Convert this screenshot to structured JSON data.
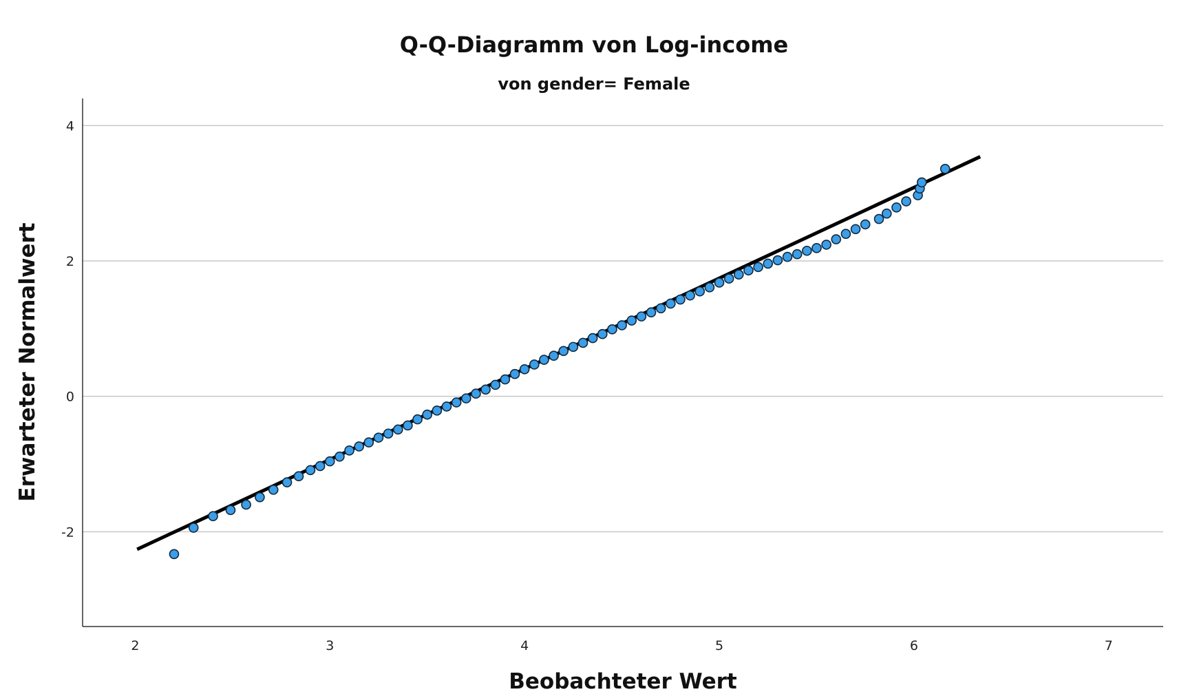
{
  "chart_data": {
    "type": "scatter",
    "title": "Q-Q-Diagramm von Log-income",
    "subtitle": "von gender= Female",
    "xlabel": "Beobachteter Wert",
    "ylabel": "Erwarteter Normalwert",
    "xlim": [
      1.73,
      7.28
    ],
    "ylim": [
      -3.4,
      4.4
    ],
    "x_ticks": [
      "2",
      "3",
      "4",
      "5",
      "6",
      "7"
    ],
    "y_ticks": [
      "-2",
      "0",
      "2",
      "4"
    ],
    "grid": "horizontal",
    "point_color": "#3d9ee8",
    "line_color": "#000000",
    "reference_line": {
      "x": [
        2.01,
        6.34
      ],
      "y": [
        -2.26,
        3.54
      ]
    },
    "series": [
      {
        "points": [
          [
            2.2,
            -2.33
          ],
          [
            2.3,
            -1.94
          ],
          [
            2.4,
            -1.77
          ],
          [
            2.49,
            -1.68
          ],
          [
            2.57,
            -1.6
          ],
          [
            2.64,
            -1.49
          ],
          [
            2.71,
            -1.38
          ],
          [
            2.78,
            -1.27
          ],
          [
            2.84,
            -1.18
          ],
          [
            2.9,
            -1.09
          ],
          [
            2.95,
            -1.03
          ],
          [
            3.0,
            -0.96
          ],
          [
            3.05,
            -0.89
          ],
          [
            3.1,
            -0.8
          ],
          [
            3.15,
            -0.74
          ],
          [
            3.2,
            -0.68
          ],
          [
            3.25,
            -0.61
          ],
          [
            3.3,
            -0.55
          ],
          [
            3.35,
            -0.49
          ],
          [
            3.4,
            -0.43
          ],
          [
            3.45,
            -0.34
          ],
          [
            3.5,
            -0.27
          ],
          [
            3.55,
            -0.21
          ],
          [
            3.6,
            -0.15
          ],
          [
            3.65,
            -0.09
          ],
          [
            3.7,
            -0.03
          ],
          [
            3.75,
            0.04
          ],
          [
            3.8,
            0.1
          ],
          [
            3.85,
            0.17
          ],
          [
            3.9,
            0.25
          ],
          [
            3.95,
            0.33
          ],
          [
            4.0,
            0.4
          ],
          [
            4.05,
            0.47
          ],
          [
            4.1,
            0.54
          ],
          [
            4.15,
            0.6
          ],
          [
            4.2,
            0.67
          ],
          [
            4.25,
            0.73
          ],
          [
            4.3,
            0.79
          ],
          [
            4.35,
            0.86
          ],
          [
            4.4,
            0.92
          ],
          [
            4.45,
            0.99
          ],
          [
            4.5,
            1.05
          ],
          [
            4.55,
            1.12
          ],
          [
            4.6,
            1.18
          ],
          [
            4.65,
            1.24
          ],
          [
            4.7,
            1.3
          ],
          [
            4.75,
            1.37
          ],
          [
            4.8,
            1.43
          ],
          [
            4.85,
            1.49
          ],
          [
            4.9,
            1.55
          ],
          [
            4.95,
            1.61
          ],
          [
            5.0,
            1.68
          ],
          [
            5.05,
            1.74
          ],
          [
            5.1,
            1.8
          ],
          [
            5.15,
            1.86
          ],
          [
            5.2,
            1.91
          ],
          [
            5.25,
            1.96
          ],
          [
            5.3,
            2.01
          ],
          [
            5.35,
            2.06
          ],
          [
            5.4,
            2.1
          ],
          [
            5.45,
            2.15
          ],
          [
            5.5,
            2.19
          ],
          [
            5.55,
            2.24
          ],
          [
            5.6,
            2.32
          ],
          [
            5.65,
            2.4
          ],
          [
            5.7,
            2.47
          ],
          [
            5.75,
            2.54
          ],
          [
            5.82,
            2.62
          ],
          [
            5.86,
            2.7
          ],
          [
            5.91,
            2.79
          ],
          [
            5.96,
            2.88
          ],
          [
            6.02,
            2.97
          ],
          [
            6.03,
            3.07
          ],
          [
            6.04,
            3.16
          ],
          [
            6.16,
            3.36
          ]
        ]
      }
    ]
  }
}
